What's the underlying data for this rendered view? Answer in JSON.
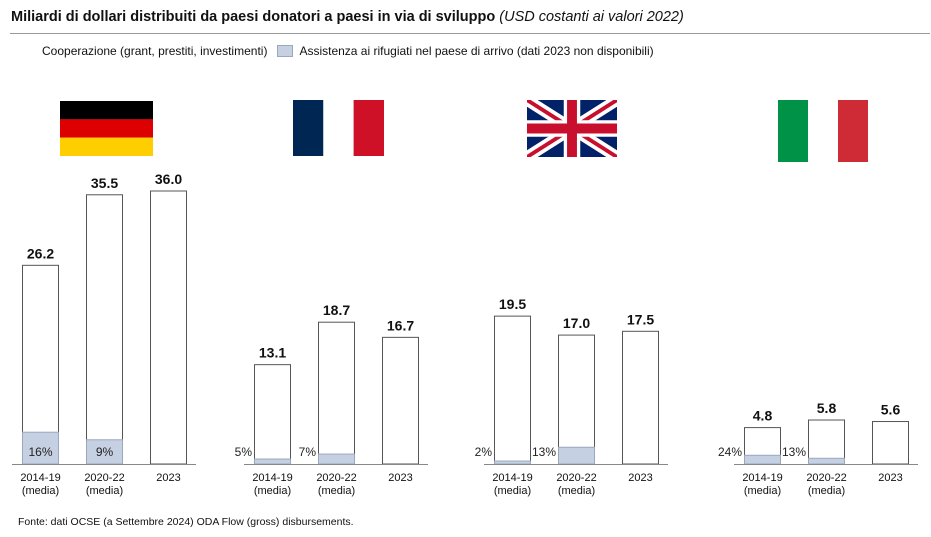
{
  "title": "Miliardi di dollari distribuiti da paesi donatori a paesi in via di sviluppo",
  "subtitle": "(USD costanti ai valori 2022)",
  "legend": {
    "series1": "Cooperazione (grant, prestiti, investimenti)",
    "series2": "Assistenza ai rifugiati nel paese di arrivo (dati 2023 non disponibili)"
  },
  "source": "Fonte: dati OCSE (a Settembre 2024) ODA Flow (gross) disbursements.",
  "colors": {
    "refugee": "#c5d0e2",
    "refugee_border": "#9aa7bd",
    "bar_border": "#555555"
  },
  "chart_data": [
    {
      "type": "bar",
      "country_flag": "germany-flag",
      "categories": [
        "2014-19\n(media)",
        "2020-22\n(media)",
        "2023"
      ],
      "totals": [
        26.2,
        35.5,
        36.0
      ],
      "total_labels": [
        "26.2",
        "35.5",
        "36.0"
      ],
      "refugee_share_pct": [
        16,
        9,
        null
      ],
      "refugee_labels": [
        "16%",
        "9%",
        ""
      ],
      "ylim": [
        0,
        36.0
      ]
    },
    {
      "type": "bar",
      "country_flag": "france-flag",
      "categories": [
        "2014-19\n(media)",
        "2020-22\n(media)",
        "2023"
      ],
      "totals": [
        13.1,
        18.7,
        16.7
      ],
      "total_labels": [
        "13.1",
        "18.7",
        "16.7"
      ],
      "refugee_share_pct": [
        5,
        7,
        null
      ],
      "refugee_labels": [
        "5%",
        "7%",
        ""
      ],
      "ylim": [
        0,
        36.0
      ]
    },
    {
      "type": "bar",
      "country_flag": "uk-flag",
      "categories": [
        "2014-19\n(media)",
        "2020-22\n(media)",
        "2023"
      ],
      "totals": [
        19.5,
        17.0,
        17.5
      ],
      "total_labels": [
        "19.5",
        "17.0",
        "17.5"
      ],
      "refugee_share_pct": [
        2,
        13,
        null
      ],
      "refugee_labels": [
        "2%",
        "13%",
        ""
      ],
      "ylim": [
        0,
        36.0
      ]
    },
    {
      "type": "bar",
      "country_flag": "italy-flag",
      "categories": [
        "2014-19\n(media)",
        "2020-22\n(media)",
        "2023"
      ],
      "totals": [
        4.8,
        5.8,
        5.6
      ],
      "total_labels": [
        "4.8",
        "5.8",
        "5.6"
      ],
      "refugee_share_pct": [
        24,
        13,
        null
      ],
      "refugee_labels": [
        "24%",
        "13%",
        ""
      ],
      "ylim": [
        0,
        36.0
      ]
    }
  ]
}
